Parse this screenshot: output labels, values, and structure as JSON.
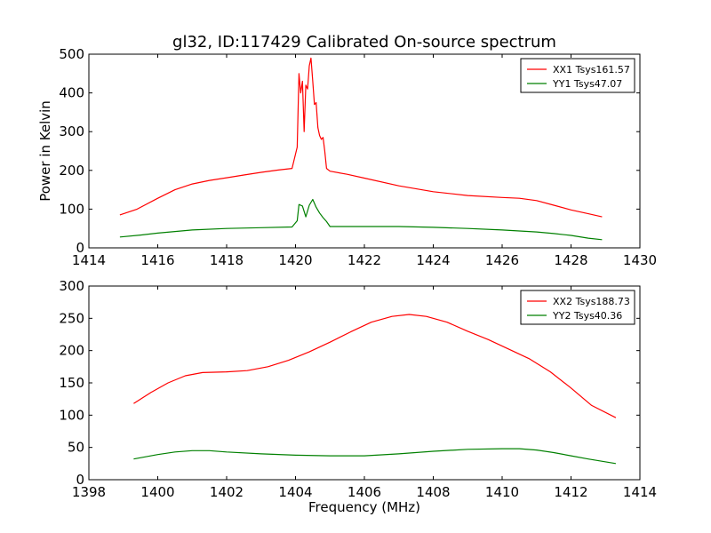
{
  "figure": {
    "title": "gl32, ID:117429 Calibrated On-source spectrum"
  },
  "chart_data": [
    {
      "type": "line",
      "title": "gl32, ID:117429 Calibrated On-source spectrum",
      "xlabel": "",
      "ylabel": "Power in Kelvin",
      "xlim": [
        1414,
        1430
      ],
      "ylim": [
        0,
        500
      ],
      "xticks": [
        1414,
        1416,
        1418,
        1420,
        1422,
        1424,
        1426,
        1428,
        1430
      ],
      "yticks": [
        0,
        100,
        200,
        300,
        400,
        500
      ],
      "grid": false,
      "legend": "top-right",
      "series": [
        {
          "name": "XX1 Tsys161.57",
          "color": "#ff0000",
          "x": [
            1414.9,
            1415.4,
            1416.0,
            1416.5,
            1417.0,
            1417.5,
            1418.0,
            1418.5,
            1419.0,
            1419.5,
            1419.9,
            1420.05,
            1420.1,
            1420.15,
            1420.2,
            1420.25,
            1420.3,
            1420.35,
            1420.4,
            1420.45,
            1420.5,
            1420.55,
            1420.6,
            1420.65,
            1420.7,
            1420.75,
            1420.8,
            1420.85,
            1420.9,
            1421.0,
            1421.5,
            1422.0,
            1423.0,
            1424.0,
            1425.0,
            1426.0,
            1426.5,
            1427.0,
            1427.5,
            1428.0,
            1428.5,
            1428.9
          ],
          "y": [
            85,
            100,
            128,
            150,
            165,
            174,
            181,
            188,
            195,
            201,
            205,
            260,
            450,
            400,
            430,
            300,
            420,
            410,
            470,
            490,
            430,
            370,
            375,
            310,
            290,
            280,
            285,
            250,
            205,
            198,
            190,
            180,
            160,
            145,
            135,
            130,
            128,
            122,
            110,
            98,
            88,
            80
          ]
        },
        {
          "name": "YY1 Tsys47.07",
          "color": "#008000",
          "x": [
            1414.9,
            1415.5,
            1416.0,
            1417.0,
            1418.0,
            1419.0,
            1419.9,
            1420.05,
            1420.1,
            1420.2,
            1420.3,
            1420.4,
            1420.5,
            1420.6,
            1420.7,
            1420.8,
            1420.9,
            1421.0,
            1422.0,
            1423.0,
            1424.0,
            1425.0,
            1426.0,
            1427.0,
            1427.5,
            1428.0,
            1428.5,
            1428.9
          ],
          "y": [
            28,
            33,
            38,
            46,
            50,
            52,
            54,
            70,
            112,
            108,
            80,
            110,
            125,
            105,
            90,
            78,
            68,
            55,
            55,
            55,
            53,
            50,
            46,
            41,
            37,
            32,
            25,
            21
          ]
        }
      ]
    },
    {
      "type": "line",
      "title": "",
      "xlabel": "Frequency (MHz)",
      "ylabel": "",
      "xlim": [
        1398,
        1414
      ],
      "ylim": [
        0,
        300
      ],
      "xticks": [
        1398,
        1400,
        1402,
        1404,
        1406,
        1408,
        1410,
        1412,
        1414
      ],
      "yticks": [
        0,
        50,
        100,
        150,
        200,
        250,
        300
      ],
      "grid": false,
      "legend": "top-right",
      "series": [
        {
          "name": "XX2 Tsys188.73",
          "color": "#ff0000",
          "x": [
            1399.3,
            1399.8,
            1400.3,
            1400.8,
            1401.3,
            1402.0,
            1402.6,
            1403.2,
            1403.8,
            1404.4,
            1405.0,
            1405.6,
            1406.2,
            1406.8,
            1407.3,
            1407.8,
            1408.4,
            1409.0,
            1409.6,
            1410.2,
            1410.8,
            1411.4,
            1412.0,
            1412.6,
            1413.3
          ],
          "y": [
            118,
            135,
            150,
            161,
            166,
            167,
            169,
            175,
            185,
            198,
            213,
            229,
            244,
            253,
            256,
            253,
            244,
            230,
            217,
            202,
            187,
            167,
            142,
            115,
            96
          ]
        },
        {
          "name": "YY2 Tsys40.36",
          "color": "#008000",
          "x": [
            1399.3,
            1400.0,
            1400.5,
            1401.0,
            1401.5,
            1402.0,
            1403.0,
            1404.0,
            1405.0,
            1406.0,
            1407.0,
            1408.0,
            1409.0,
            1410.0,
            1410.5,
            1411.0,
            1411.5,
            1412.0,
            1412.5,
            1413.3
          ],
          "y": [
            32,
            39,
            43,
            45,
            45,
            43,
            40,
            38,
            37,
            37,
            40,
            44,
            47,
            48,
            48,
            46,
            42,
            37,
            32,
            25
          ]
        }
      ]
    }
  ]
}
